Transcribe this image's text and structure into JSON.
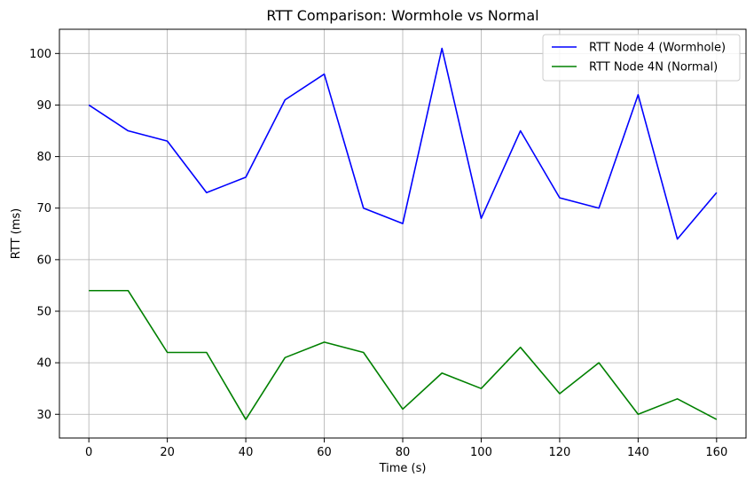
{
  "chart_data": {
    "type": "line",
    "title": "RTT Comparison: Wormhole vs Normal",
    "xlabel": "Time (s)",
    "ylabel": "RTT (ms)",
    "xlim": [
      -7.5,
      167.5
    ],
    "ylim": [
      25.4,
      104.7
    ],
    "xticks": [
      0,
      20,
      40,
      60,
      80,
      100,
      120,
      140,
      160
    ],
    "yticks": [
      30,
      40,
      50,
      60,
      70,
      80,
      90,
      100
    ],
    "grid": true,
    "legend_position": "top-right",
    "x": [
      0,
      10,
      20,
      30,
      40,
      50,
      60,
      70,
      80,
      90,
      100,
      110,
      120,
      130,
      140,
      150,
      160
    ],
    "series": [
      {
        "name": "RTT Node 4 (Wormhole)",
        "color": "#0000ff",
        "values": [
          90,
          85,
          83,
          73,
          76,
          91,
          96,
          70,
          67,
          101,
          68,
          85,
          72,
          70,
          92,
          64,
          73
        ]
      },
      {
        "name": "RTT Node 4N (Normal)",
        "color": "#008000",
        "values": [
          54,
          54,
          42,
          42,
          29,
          41,
          44,
          42,
          31,
          38,
          35,
          43,
          34,
          40,
          30,
          33,
          29
        ]
      }
    ]
  }
}
